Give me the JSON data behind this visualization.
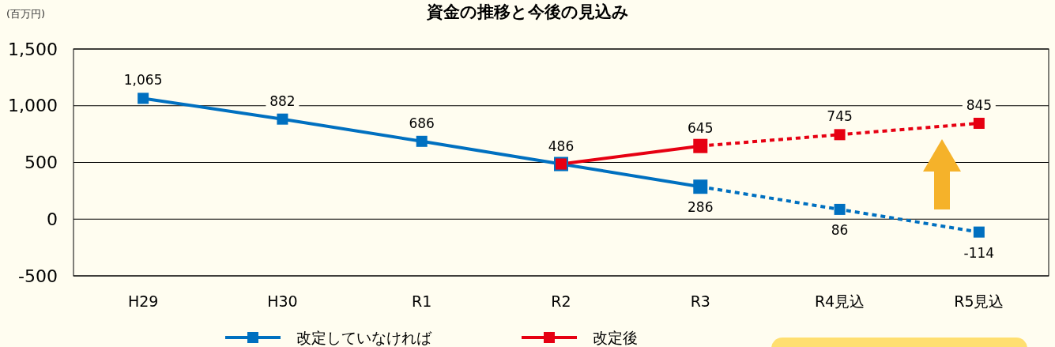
{
  "chart_data": {
    "type": "line",
    "title": "資金の推移と今後の見込み",
    "ylabel": "(百万円)",
    "categories": [
      "H29",
      "H30",
      "R1",
      "R2",
      "R3",
      "R4見込",
      "R5見込"
    ],
    "series": [
      {
        "name": "改定していなければ",
        "color": "#0070c0",
        "line_style": "solid",
        "values": [
          1065,
          882,
          686,
          486,
          286,
          null,
          null
        ],
        "value_labels": [
          "1,065",
          "882",
          "686",
          "486",
          "286",
          null,
          null
        ]
      },
      {
        "color": "#0070c0",
        "line_style": "dashed",
        "values": [
          null,
          null,
          null,
          null,
          286,
          86,
          -114
        ],
        "value_labels": [
          null,
          null,
          null,
          null,
          null,
          "86",
          "-114"
        ]
      },
      {
        "name": "改定後",
        "color": "#e60012",
        "line_style": "solid",
        "values": [
          null,
          null,
          null,
          486,
          645,
          null,
          null
        ],
        "value_labels": [
          null,
          null,
          null,
          null,
          "645",
          null,
          null
        ]
      },
      {
        "color": "#e60012",
        "line_style": "dashed",
        "values": [
          null,
          null,
          null,
          null,
          645,
          745,
          845
        ],
        "value_labels": [
          null,
          null,
          null,
          null,
          null,
          "745",
          "845"
        ]
      }
    ],
    "ylim": [
      -500,
      1500
    ],
    "yticks": [
      {
        "value": -500,
        "label": "-500"
      },
      0,
      500,
      {
        "value": 1000,
        "label": "1,000"
      },
      {
        "value": 1500,
        "label": "1,500"
      }
    ],
    "grid": "y",
    "marker": "square",
    "legend": "bottom"
  }
}
